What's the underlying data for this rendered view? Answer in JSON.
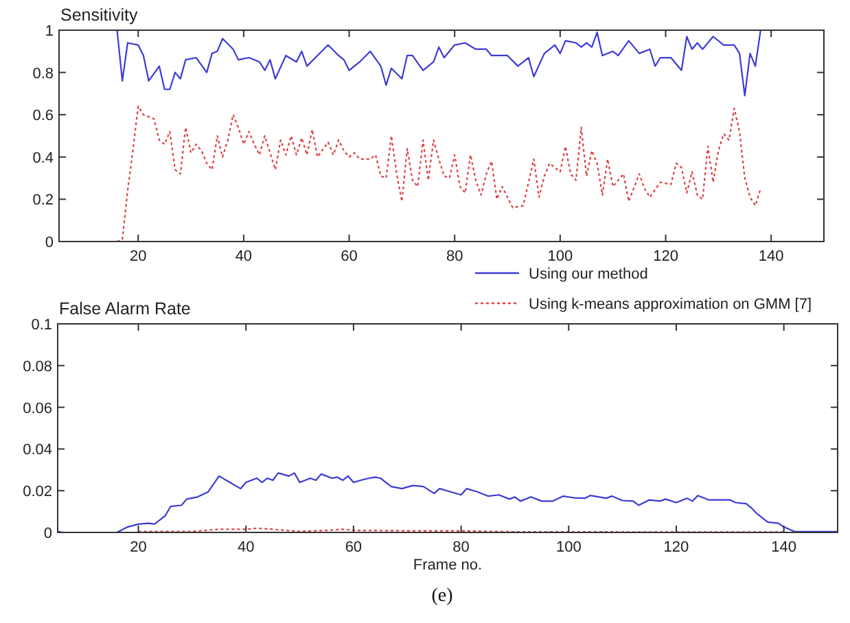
{
  "chart_data": [
    {
      "type": "line",
      "title": "Sensitivity",
      "xlim": [
        5,
        150
      ],
      "ylim": [
        0,
        1
      ],
      "xticks": [
        20,
        40,
        60,
        80,
        100,
        120,
        140
      ],
      "yticks": [
        0,
        0.2,
        0.4,
        0.6,
        0.8,
        1
      ],
      "grid": false,
      "legend": false,
      "series": [
        {
          "color": "#3b3bd6",
          "line_style": "solid",
          "x": [
            16,
            17,
            18,
            20,
            21,
            22,
            24,
            25,
            26,
            27,
            28,
            29,
            31,
            33,
            34,
            35,
            36,
            38,
            39,
            41,
            43,
            44,
            45,
            46,
            48,
            50,
            51,
            52,
            54,
            56,
            58,
            59,
            60,
            62,
            64,
            66,
            67,
            68,
            70,
            71,
            72,
            74,
            76,
            77,
            78,
            80,
            82,
            84,
            86,
            87,
            90,
            92,
            94,
            95,
            97,
            99,
            100,
            101,
            103,
            104,
            105,
            106,
            107,
            108,
            110,
            111,
            113,
            115,
            117,
            118,
            119,
            121,
            123,
            124,
            125,
            126,
            127,
            129,
            131,
            133,
            134,
            135,
            136,
            137,
            138
          ],
          "values": [
            1.0,
            0.76,
            0.94,
            0.93,
            0.88,
            0.76,
            0.83,
            0.72,
            0.72,
            0.8,
            0.77,
            0.86,
            0.87,
            0.8,
            0.89,
            0.9,
            0.96,
            0.91,
            0.86,
            0.87,
            0.85,
            0.81,
            0.86,
            0.77,
            0.88,
            0.85,
            0.9,
            0.83,
            0.88,
            0.93,
            0.88,
            0.86,
            0.81,
            0.85,
            0.9,
            0.83,
            0.74,
            0.82,
            0.77,
            0.88,
            0.88,
            0.81,
            0.85,
            0.92,
            0.87,
            0.93,
            0.94,
            0.91,
            0.91,
            0.88,
            0.88,
            0.83,
            0.87,
            0.78,
            0.89,
            0.93,
            0.89,
            0.95,
            0.94,
            0.92,
            0.94,
            0.92,
            0.99,
            0.88,
            0.9,
            0.88,
            0.95,
            0.89,
            0.91,
            0.83,
            0.87,
            0.87,
            0.81,
            0.97,
            0.91,
            0.94,
            0.91,
            0.97,
            0.93,
            0.93,
            0.89,
            0.69,
            0.89,
            0.83,
            1.0
          ]
        },
        {
          "color": "#e04040",
          "line_style": "dotted",
          "x": [
            16,
            17,
            18,
            19,
            20,
            21,
            23,
            24,
            25,
            26,
            27,
            28,
            29,
            30,
            31,
            32,
            33,
            34,
            35,
            36,
            37,
            38,
            39,
            40,
            41,
            42,
            43,
            44,
            45,
            46,
            47,
            48,
            49,
            50,
            51,
            52,
            53,
            54,
            56,
            57,
            58,
            59,
            60,
            61,
            62,
            64,
            65,
            66,
            67,
            68,
            69,
            70,
            71,
            72,
            73,
            74,
            75,
            76,
            77,
            78,
            79,
            80,
            81,
            82,
            83,
            84,
            85,
            86,
            87,
            88,
            89,
            91,
            93,
            95,
            96,
            97,
            98,
            100,
            101,
            102,
            103,
            104,
            105,
            106,
            107,
            108,
            109,
            110,
            112,
            113,
            115,
            116,
            117,
            119,
            121,
            122,
            123,
            124,
            125,
            126,
            127,
            128,
            129,
            130,
            131,
            132,
            133,
            134,
            135,
            136,
            137,
            138
          ],
          "values": [
            0,
            0.01,
            0.24,
            0.43,
            0.64,
            0.6,
            0.58,
            0.48,
            0.46,
            0.52,
            0.34,
            0.32,
            0.54,
            0.42,
            0.46,
            0.43,
            0.37,
            0.34,
            0.5,
            0.4,
            0.48,
            0.6,
            0.54,
            0.46,
            0.52,
            0.46,
            0.41,
            0.5,
            0.42,
            0.34,
            0.48,
            0.41,
            0.5,
            0.41,
            0.49,
            0.41,
            0.53,
            0.4,
            0.47,
            0.41,
            0.48,
            0.43,
            0.4,
            0.42,
            0.39,
            0.39,
            0.41,
            0.31,
            0.3,
            0.5,
            0.32,
            0.19,
            0.44,
            0.29,
            0.26,
            0.48,
            0.29,
            0.48,
            0.39,
            0.31,
            0.3,
            0.41,
            0.26,
            0.23,
            0.41,
            0.29,
            0.22,
            0.32,
            0.38,
            0.2,
            0.26,
            0.16,
            0.17,
            0.39,
            0.21,
            0.31,
            0.37,
            0.33,
            0.45,
            0.32,
            0.29,
            0.54,
            0.31,
            0.43,
            0.37,
            0.22,
            0.39,
            0.26,
            0.32,
            0.19,
            0.32,
            0.25,
            0.21,
            0.28,
            0.27,
            0.37,
            0.35,
            0.23,
            0.33,
            0.22,
            0.2,
            0.45,
            0.28,
            0.43,
            0.51,
            0.48,
            0.63,
            0.52,
            0.3,
            0.21,
            0.17,
            0.25
          ]
        }
      ]
    },
    {
      "type": "line",
      "title": "False Alarm Rate",
      "xlabel": "Frame no.",
      "xlim": [
        5,
        150
      ],
      "ylim": [
        0,
        0.1
      ],
      "xticks": [
        20,
        40,
        60,
        80,
        100,
        120,
        140
      ],
      "yticks": [
        0,
        0.02,
        0.04,
        0.06,
        0.08,
        0.1
      ],
      "grid": false,
      "legend": "top right",
      "annotations": [
        "(e)"
      ],
      "series": [
        {
          "name": "Using our method",
          "color": "#3b3bd6",
          "line_style": "solid",
          "x": [
            5,
            6,
            16,
            18,
            20,
            22,
            23,
            25,
            26,
            28,
            29,
            31,
            33,
            35,
            37,
            39,
            40,
            42,
            43,
            44,
            45,
            46,
            48,
            49,
            50,
            52,
            53,
            54,
            56,
            57,
            58,
            59,
            60,
            62,
            64,
            65,
            67,
            69,
            71,
            73,
            75,
            76,
            78,
            80,
            81,
            83,
            85,
            87,
            89,
            90,
            91,
            93,
            95,
            97,
            99,
            101,
            103,
            104,
            107,
            108,
            110,
            112,
            113,
            115,
            117,
            118,
            120,
            122,
            123,
            124,
            126,
            128,
            130,
            131,
            133,
            134,
            135,
            137,
            139,
            140,
            142,
            150
          ],
          "values": [
            0.0005,
            0,
            0,
            0.0026,
            0.004,
            0.0044,
            0.004,
            0.008,
            0.0125,
            0.013,
            0.016,
            0.017,
            0.0195,
            0.027,
            0.024,
            0.021,
            0.024,
            0.026,
            0.024,
            0.026,
            0.025,
            0.0285,
            0.027,
            0.0285,
            0.024,
            0.026,
            0.025,
            0.028,
            0.026,
            0.0265,
            0.025,
            0.027,
            0.024,
            0.0255,
            0.0265,
            0.026,
            0.022,
            0.021,
            0.0225,
            0.022,
            0.0187,
            0.021,
            0.0195,
            0.018,
            0.021,
            0.0195,
            0.0174,
            0.018,
            0.016,
            0.017,
            0.015,
            0.017,
            0.015,
            0.015,
            0.0174,
            0.0166,
            0.0164,
            0.0177,
            0.0164,
            0.0174,
            0.0153,
            0.015,
            0.013,
            0.0156,
            0.015,
            0.016,
            0.0143,
            0.0164,
            0.015,
            0.0177,
            0.0156,
            0.0156,
            0.0156,
            0.0143,
            0.0138,
            0.0117,
            0.009,
            0.005,
            0.0044,
            0.0026,
            0.0004,
            0.0004
          ]
        },
        {
          "name": "Using k-means approximation on GMM [7]",
          "color": "#e04040",
          "line_style": "dotted",
          "x": [
            20,
            30,
            35,
            40,
            42,
            45,
            50,
            55,
            58,
            60,
            70,
            80,
            85,
            90,
            100,
            120,
            140
          ],
          "values": [
            0.0005,
            0.0005,
            0.0015,
            0.0015,
            0.002,
            0.0015,
            0.0005,
            0.001,
            0.0015,
            0.001,
            0.0008,
            0.0008,
            0.0005,
            0.0003,
            0.0003,
            0.0002,
            0.0002
          ]
        }
      ]
    }
  ]
}
